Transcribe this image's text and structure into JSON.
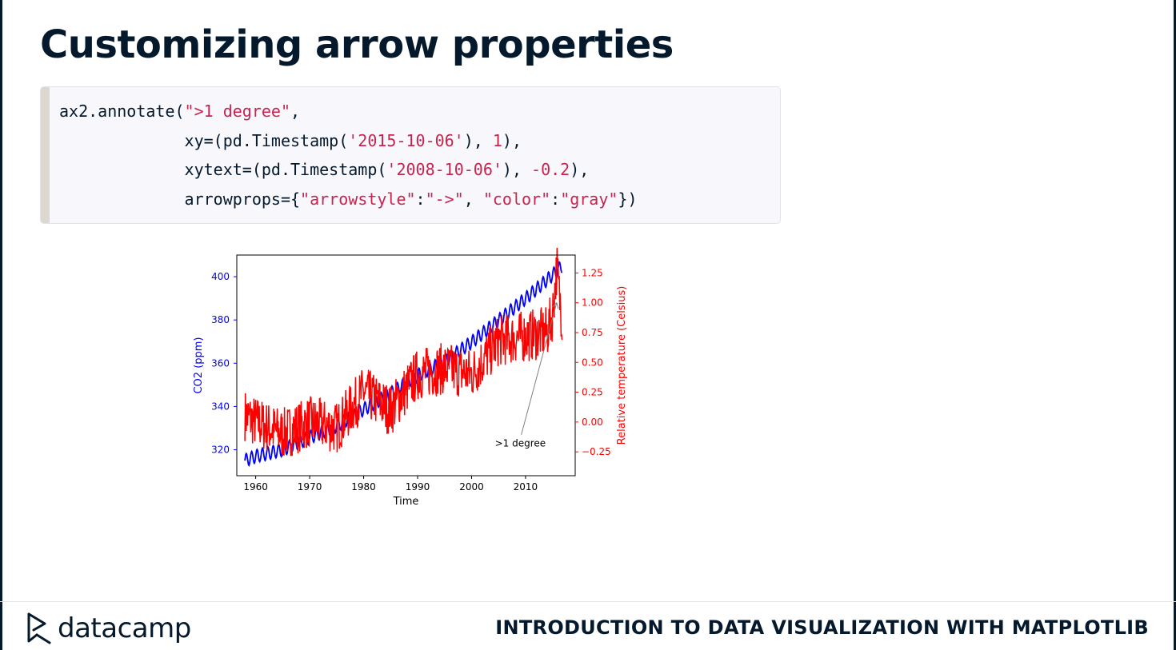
{
  "slide": {
    "title": "Customizing arrow properties",
    "code_lines": [
      [
        {
          "t": "ax2.annotate(",
          "k": "plain"
        },
        {
          "t": "\">1 degree\"",
          "k": "str"
        },
        {
          "t": ",",
          "k": "plain"
        }
      ],
      [
        {
          "t": "             xy=(pd.Timestamp(",
          "k": "plain"
        },
        {
          "t": "'2015-10-06'",
          "k": "str"
        },
        {
          "t": "), ",
          "k": "plain"
        },
        {
          "t": "1",
          "k": "num"
        },
        {
          "t": "),",
          "k": "plain"
        }
      ],
      [
        {
          "t": "             xytext=(pd.Timestamp(",
          "k": "plain"
        },
        {
          "t": "'2008-10-06'",
          "k": "str"
        },
        {
          "t": "), ",
          "k": "plain"
        },
        {
          "t": "-0.2",
          "k": "num"
        },
        {
          "t": "),",
          "k": "plain"
        }
      ],
      [
        {
          "t": "             arrowprops={",
          "k": "plain"
        },
        {
          "t": "\"arrowstyle\"",
          "k": "str"
        },
        {
          "t": ":",
          "k": "plain"
        },
        {
          "t": "\"->\"",
          "k": "str"
        },
        {
          "t": ", ",
          "k": "plain"
        },
        {
          "t": "\"color\"",
          "k": "str"
        },
        {
          "t": ":",
          "k": "plain"
        },
        {
          "t": "\"gray\"",
          "k": "str"
        },
        {
          "t": "})",
          "k": "plain"
        }
      ]
    ]
  },
  "footer": {
    "logo_text": "datacamp",
    "course": "INTRODUCTION TO DATA VISUALIZATION WITH MATPLOTLIB"
  },
  "colors": {
    "navy": "#05192d",
    "co2": "#0000ff",
    "temp": "#ff0000",
    "arrow": "#808080",
    "code_string": "#c7254e"
  },
  "chart_data": {
    "type": "line",
    "title": "",
    "xlabel": "Time",
    "xlim": [
      1956.5,
      2019.2
    ],
    "xticks": [
      1960,
      1970,
      1980,
      1990,
      2000,
      2010
    ],
    "left_axis": {
      "label": "CO2 (ppm)",
      "color": "#0000ff",
      "ylim": [
        308,
        410
      ],
      "ticks": [
        320,
        340,
        360,
        380,
        400
      ]
    },
    "right_axis": {
      "label": "Relative temperature (Celsius)",
      "color": "#ff0000",
      "ylim": [
        -0.45,
        1.4
      ],
      "ticks": [
        -0.25,
        0.0,
        0.25,
        0.5,
        0.75,
        1.0,
        1.25
      ],
      "tick_labels": [
        "−0.25",
        "0.00",
        "0.25",
        "0.50",
        "0.75",
        "1.00",
        "1.25"
      ]
    },
    "series": [
      {
        "axis": "left",
        "color": "#0000ff",
        "x": [
          1958,
          1960,
          1965,
          1970,
          1975,
          1980,
          1985,
          1990,
          1995,
          2000,
          2005,
          2010,
          2015,
          2016.8
        ],
        "values": [
          315,
          317,
          320,
          325.7,
          331,
          338.7,
          346,
          354.4,
          360.9,
          369.7,
          379.8,
          389.9,
          400.8,
          405
        ]
      },
      {
        "axis": "right",
        "color": "#ff0000",
        "x": [
          1958,
          1960,
          1965,
          1970,
          1975,
          1980,
          1985,
          1990,
          1995,
          2000,
          2005,
          2010,
          2014,
          2015,
          2015.8,
          2016.3,
          2016.8
        ],
        "values": [
          0.06,
          0.0,
          -0.1,
          0.0,
          -0.05,
          0.25,
          0.1,
          0.4,
          0.45,
          0.4,
          0.68,
          0.72,
          0.75,
          0.9,
          1.3,
          1.05,
          0.85
        ]
      }
    ],
    "annotation": {
      "text": ">1 degree",
      "xy": [
        2015.77,
        1.0
      ],
      "xytext": [
        2008.77,
        -0.2
      ],
      "arrowstyle": "->",
      "color": "gray"
    }
  }
}
